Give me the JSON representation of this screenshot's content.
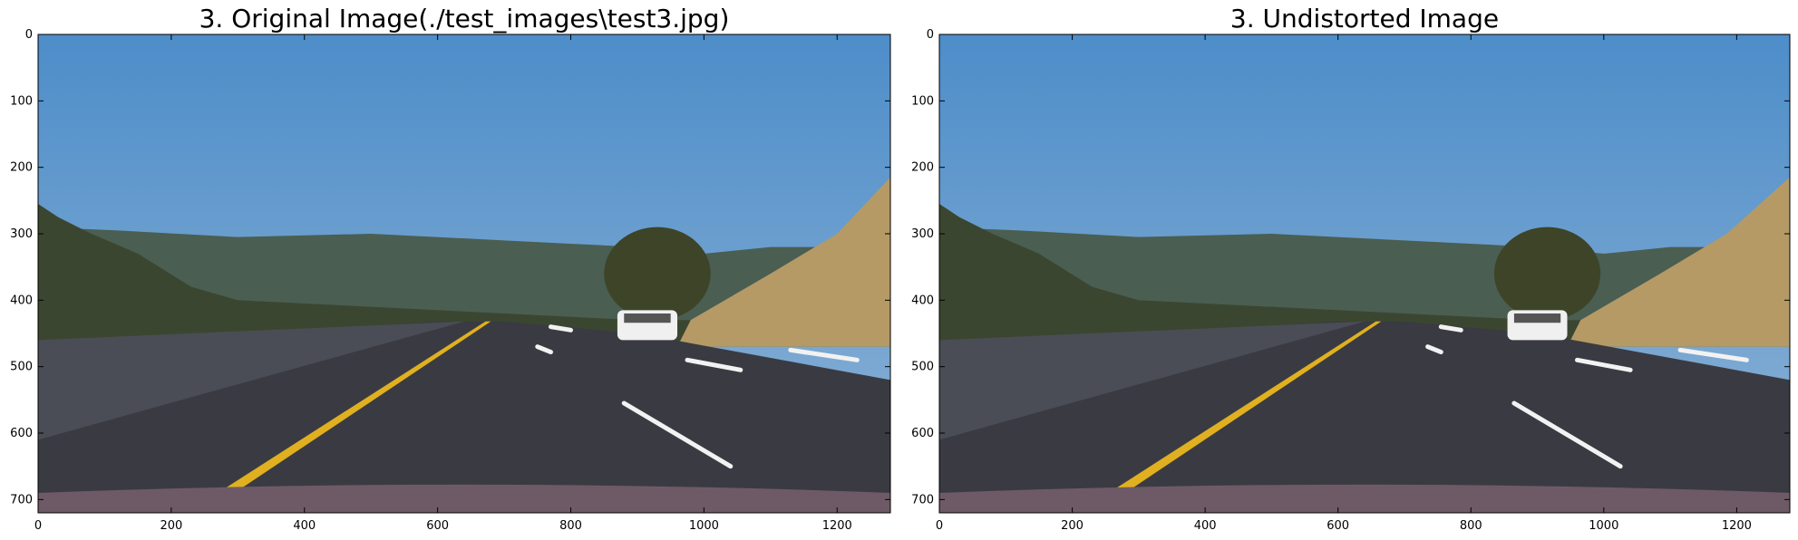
{
  "panels": [
    {
      "title": "3. Original Image(./test_images\\test3.jpg)",
      "x_ticks": [
        "0",
        "200",
        "400",
        "600",
        "800",
        "1000",
        "1200"
      ],
      "y_ticks": [
        "0",
        "100",
        "200",
        "300",
        "400",
        "500",
        "600",
        "700"
      ]
    },
    {
      "title": "3. Undistorted Image",
      "x_ticks": [
        "0",
        "200",
        "400",
        "600",
        "800",
        "1000",
        "1200"
      ],
      "y_ticks": [
        "0",
        "100",
        "200",
        "300",
        "400",
        "500",
        "600",
        "700"
      ]
    }
  ],
  "image_extent": {
    "x": [
      0,
      1280
    ],
    "y": [
      720,
      0
    ]
  },
  "scene": {
    "description_icon": "road-photo",
    "colors": {
      "sky_top": "#4d8dc9",
      "sky_bottom": "#8fb4d6",
      "mountains": "#4a5e52",
      "trees": "#3b4630",
      "hill": "#b59a66",
      "road": "#3a3b42",
      "wall": "#4a4d55",
      "yellow_line": "#e0b020",
      "white_line": "#f2f2f2",
      "car": "#f0f0f0",
      "hood": "#6e5a66"
    }
  }
}
